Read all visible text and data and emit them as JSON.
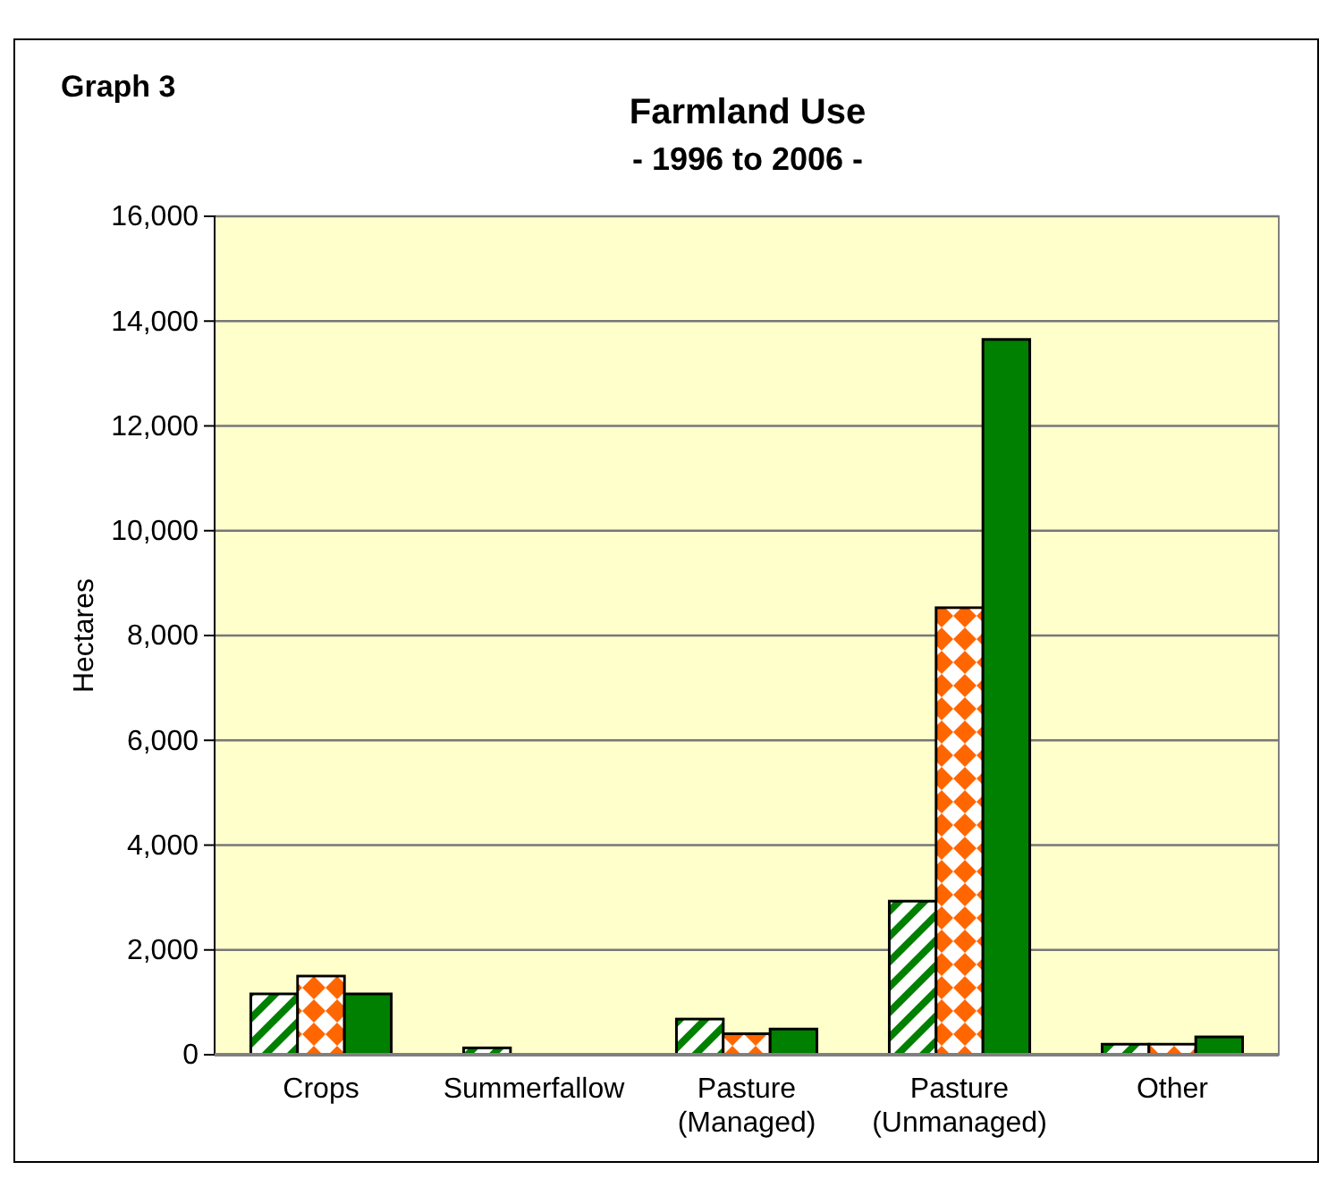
{
  "chart_data": {
    "type": "bar",
    "title": "Farmland Use",
    "subtitle": "- 1996 to 2006 -",
    "ylabel": "Hectares",
    "annotations": [
      "Graph 3"
    ],
    "categories": [
      "Crops",
      "Summerfallow",
      "Pasture\n(Managed)",
      "Pasture\n(Unmanaged)",
      "Other"
    ],
    "series": [
      {
        "color": "#008000",
        "values": [
          1160,
          130,
          680,
          2930,
          200
        ]
      },
      {
        "color": "#ff6600",
        "values": [
          1500,
          0,
          400,
          8530,
          200
        ]
      },
      {
        "color": "#008000",
        "values": [
          1160,
          0,
          490,
          13650,
          340
        ]
      }
    ],
    "ylim": [
      0,
      16000
    ],
    "yticks": [
      {
        "value": 0,
        "label": "0"
      },
      {
        "value": 2000,
        "label": "2,000"
      },
      {
        "value": 4000,
        "label": "4,000"
      },
      {
        "value": 6000,
        "label": "6,000"
      },
      {
        "value": 8000,
        "label": "8,000"
      },
      {
        "value": 10000,
        "label": "10,000"
      },
      {
        "value": 12000,
        "label": "12,000"
      },
      {
        "value": 14000,
        "label": "14,000"
      },
      {
        "value": 16000,
        "label": "16,000"
      }
    ],
    "grid": "y"
  }
}
